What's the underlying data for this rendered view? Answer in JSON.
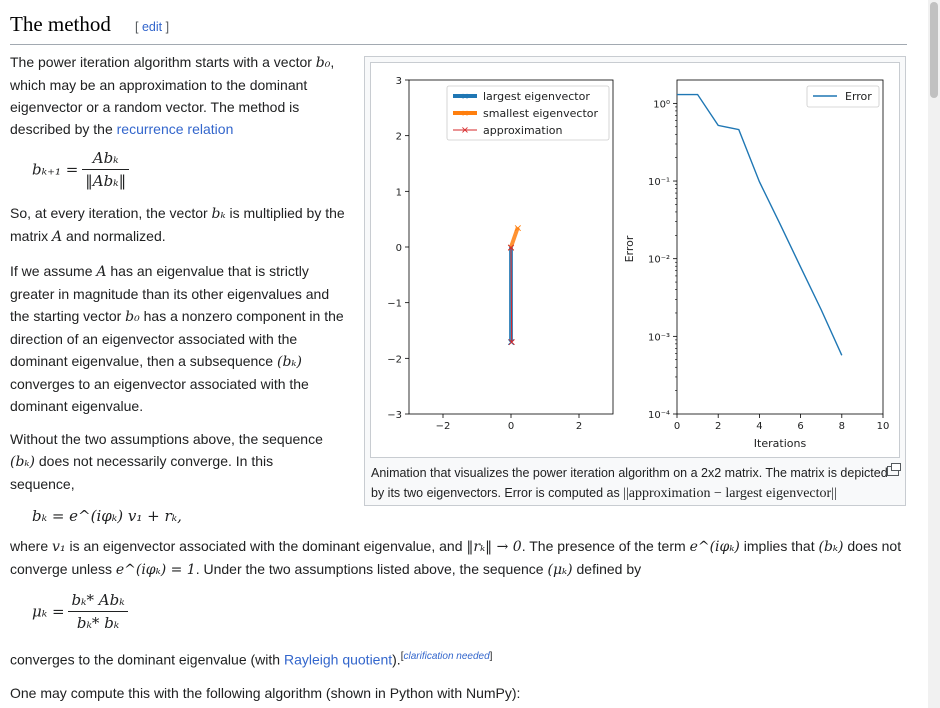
{
  "heading": {
    "title": "The method",
    "edit_open": "[ ",
    "edit": "edit",
    "edit_close": " ]"
  },
  "para1": {
    "t1": "The power iteration algorithm starts with a vector ",
    "t2": ", which may be an approximation to the dominant eigenvector or a random vector. The method is described by the ",
    "link": "recurrence relation"
  },
  "para2": {
    "t1": "So, at every iteration, the vector ",
    "t2": " is multiplied by the matrix ",
    "t3": " and normalized."
  },
  "para3": {
    "t1": "If we assume ",
    "t2": " has an eigenvalue that is strictly greater in magnitude than its other eigenvalues and the starting vector ",
    "t3": " has a nonzero component in the direction of an eigenvector associated with the dominant eigenvalue, then a subsequence ",
    "t4": " converges to an eigenvector associated with the dominant eigenvalue."
  },
  "para4": {
    "t1": "Without the two assumptions above, the sequence ",
    "t2": " does not necessarily converge. In this sequence,"
  },
  "para5": {
    "t1": "where ",
    "t2": " is an eigenvector associated with the dominant eigenvalue, and ",
    "t3": ". The presence of the term ",
    "t4": " implies that ",
    "t5": " does not converge unless ",
    "t6": ". Under the two assumptions listed above, the sequence ",
    "t7": " defined by"
  },
  "para6": {
    "t1": "converges to the dominant eigenvalue (with ",
    "link": "Rayleigh quotient",
    "t2": ").",
    "cn_open": "[",
    "cn": "clarification needed",
    "cn_close": "]"
  },
  "para7": {
    "t1": "One may compute this with the following algorithm (shown in Python with NumPy):"
  },
  "math": {
    "b0": "b₀",
    "bk": "bₖ",
    "A": "A",
    "seq_bk": "(bₖ)",
    "seq_mu": "(μₖ)",
    "v1": "v₁",
    "rk_to0": "‖rₖ‖ → 0",
    "eiphi": "e^(iφₖ)",
    "eiphi_eq1": "e^(iφₖ) = 1",
    "recurrence_lhs": "bₖ₊₁ =",
    "recurrence_num": "Abₖ",
    "recurrence_den": "‖Abₖ‖",
    "bk_eq": "bₖ = e^(iφₖ) v₁ + rₖ,",
    "mu_lhs": "μₖ =",
    "mu_num": "bₖ* Abₖ",
    "mu_den": "bₖ* bₖ"
  },
  "figure": {
    "caption_text": "Animation that visualizes the power iteration algorithm on a 2x2 matrix. The matrix is depicted by its two eigenvectors. Error is computed as ",
    "caption_math": "||approximation − largest eigenvector||"
  },
  "chart_data": [
    {
      "type": "line",
      "xlim": [
        -3,
        3
      ],
      "ylim": [
        -3,
        3
      ],
      "xticks": [
        "−2",
        "0",
        "2"
      ],
      "yticks": [
        "3",
        "2",
        "1",
        "0",
        "−1",
        "−2",
        "−3"
      ],
      "grid": false,
      "legend_position": "top-right",
      "series": [
        {
          "name": "largest eigenvector",
          "color": "#1f77b4",
          "x": [
            0,
            0
          ],
          "y": [
            0,
            -1.7
          ]
        },
        {
          "name": "smallest eigenvector",
          "color": "#ff7f0e",
          "x": [
            0,
            0.2
          ],
          "y": [
            0,
            0.35
          ]
        },
        {
          "name": "approximation",
          "color": "#d62728",
          "x": [
            0,
            0.02
          ],
          "y": [
            0,
            -1.7
          ]
        }
      ]
    },
    {
      "type": "line",
      "xlabel": "Iterations",
      "ylabel": "Error",
      "yscale": "log",
      "xlim": [
        0,
        10
      ],
      "ylim": [
        0.0001,
        2
      ],
      "xticks": [
        "0",
        "2",
        "4",
        "6",
        "8",
        "10"
      ],
      "yticks": [
        "10⁰",
        "10⁻¹",
        "10⁻²",
        "10⁻³",
        "10⁻⁴"
      ],
      "grid": false,
      "legend_position": "top-right",
      "series": [
        {
          "name": "Error",
          "color": "#1f77b4",
          "x": [
            0,
            1,
            2,
            3,
            4,
            5,
            6,
            7,
            8
          ],
          "y": [
            1.3,
            1.3,
            0.52,
            0.46,
            0.098,
            0.028,
            0.0078,
            0.0022,
            0.00057
          ]
        }
      ]
    }
  ]
}
